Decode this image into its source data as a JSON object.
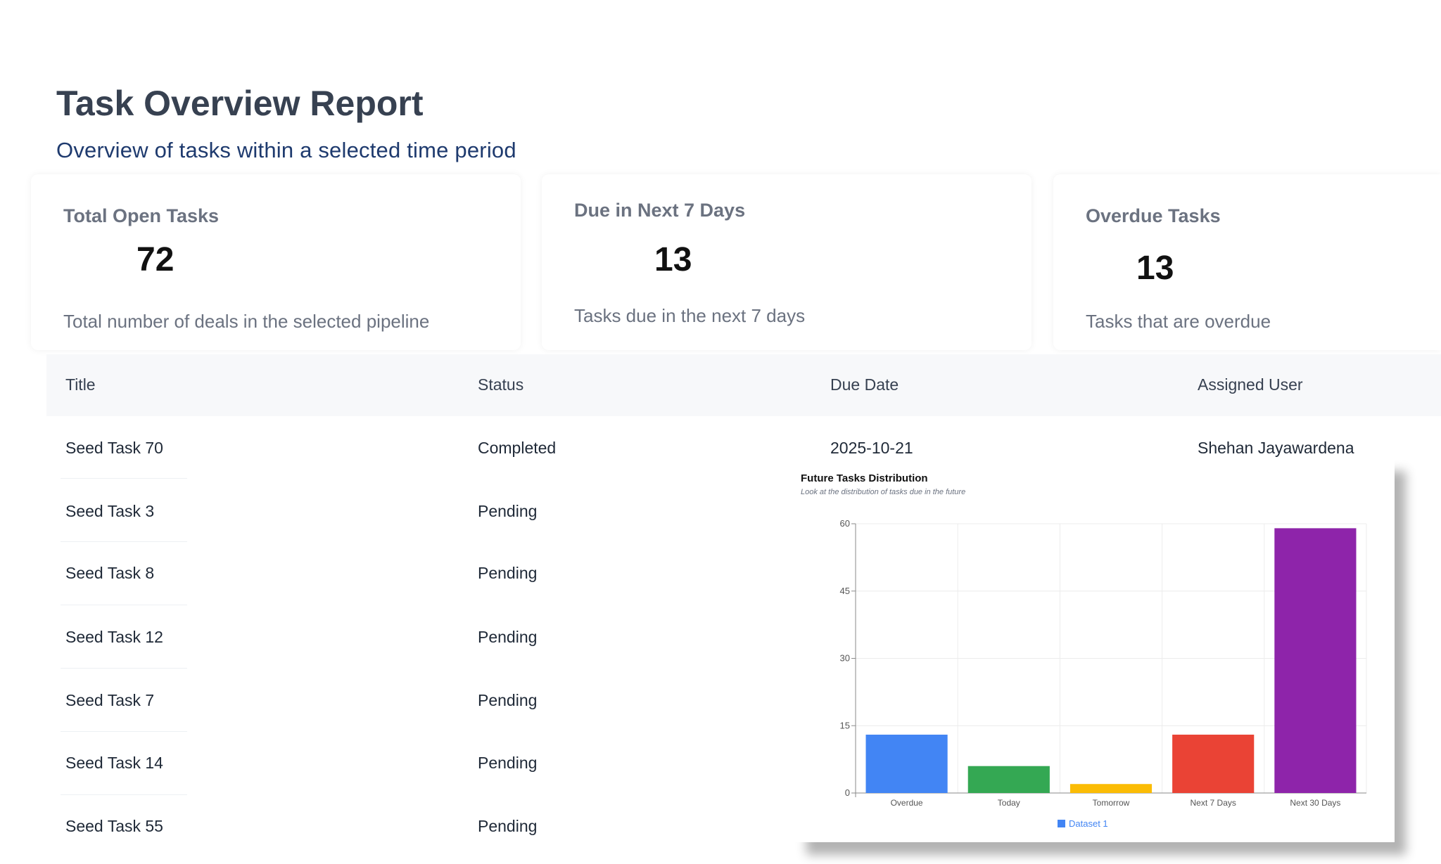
{
  "header": {
    "title": "Task Overview Report",
    "subtitle": "Overview of tasks within a selected time period"
  },
  "cards": [
    {
      "label": "Total Open Tasks",
      "value": "72",
      "description": "Total number of deals in the selected pipeline"
    },
    {
      "label": "Due in Next 7 Days",
      "value": "13",
      "description": "Tasks due in the next 7 days"
    },
    {
      "label": "Overdue Tasks",
      "value": "13",
      "description": "Tasks that are overdue"
    }
  ],
  "table": {
    "columns": [
      "Title",
      "Status",
      "Due Date",
      "Assigned User"
    ],
    "rows": [
      {
        "title": "Seed Task 70",
        "status": "Completed",
        "due_date": "2025-10-21",
        "assigned_user": "Shehan Jayawardena"
      },
      {
        "title": "Seed Task 3",
        "status": "Pending"
      },
      {
        "title": "Seed Task 8",
        "status": "Pending"
      },
      {
        "title": "Seed Task 12",
        "status": "Pending"
      },
      {
        "title": "Seed Task 7",
        "status": "Pending"
      },
      {
        "title": "Seed Task 14",
        "status": "Pending"
      },
      {
        "title": "Seed Task 55",
        "status": "Pending"
      }
    ]
  },
  "chart_data": {
    "type": "bar",
    "title": "Future Tasks Distribution",
    "subtitle": "Look at the distribution of tasks due in the future",
    "categories": [
      "Overdue",
      "Today",
      "Tomorrow",
      "Next 7 Days",
      "Next 30 Days"
    ],
    "series": [
      {
        "name": "Dataset 1",
        "values": [
          13,
          6,
          2,
          13,
          59
        ]
      }
    ],
    "colors": [
      "#4285f4",
      "#34a853",
      "#fbbc05",
      "#ea4335",
      "#8e24aa"
    ],
    "legend_color": "#4285f4",
    "ylim": [
      0,
      60
    ],
    "yticks": [
      0,
      15,
      30,
      45,
      60
    ],
    "grid": true,
    "legend": "bottom"
  }
}
